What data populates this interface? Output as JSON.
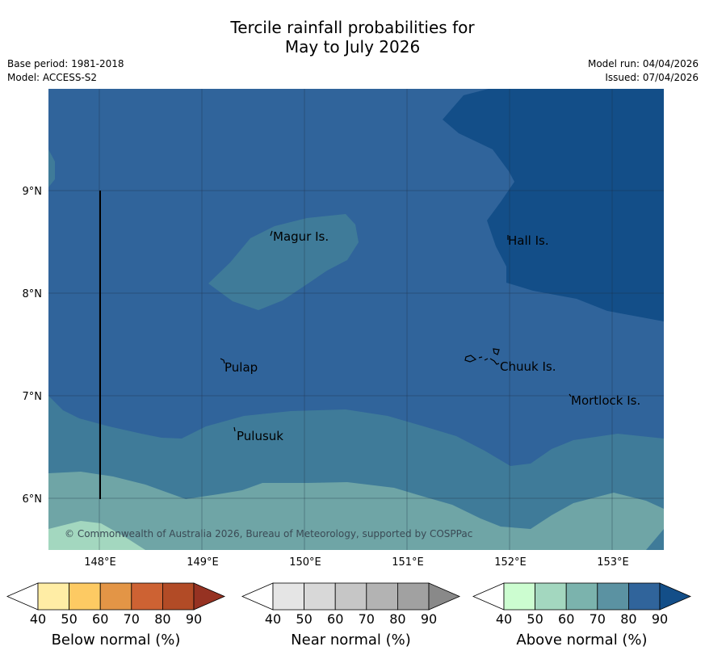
{
  "title": {
    "line1": "Tercile rainfall probabilities for",
    "line2": "May to July 2026"
  },
  "meta": {
    "base_period": "Base period: 1981-2018",
    "model": "Model: ACCESS-S2",
    "model_run": "Model run: 04/04/2026",
    "issued": "Issued: 07/04/2026"
  },
  "map": {
    "x_ticks": [
      "148°E",
      "149°E",
      "150°E",
      "151°E",
      "152°E",
      "153°E"
    ],
    "y_ticks": [
      "9°N",
      "8°N",
      "7°N",
      "6°N"
    ],
    "places": [
      "Magur Is.",
      "Hall Is.",
      "Pulap",
      "Chuuk Is.",
      "Mortlock Is.",
      "Pulusuk"
    ],
    "copyright": "© Commonwealth of Australia 2026, Bureau of Meteorology, supported by COSPPac",
    "band_colors": {
      "above_90": "#134e88",
      "above_80": "#30649b",
      "above_70": "#3f7b99",
      "above_60": "#6fa5a6",
      "above_50": "#a3d7bf"
    }
  },
  "legends": [
    {
      "label": "Below normal (%)",
      "ticks": [
        "40",
        "50",
        "60",
        "70",
        "80",
        "90"
      ],
      "colors": [
        "#ffffff",
        "#ffeda5",
        "#fdca63",
        "#e39546",
        "#cd6233",
        "#b24b26",
        "#963222"
      ]
    },
    {
      "label": "Near normal (%)",
      "ticks": [
        "40",
        "50",
        "60",
        "70",
        "80",
        "90"
      ],
      "colors": [
        "#ffffff",
        "#e5e5e5",
        "#d8d8d8",
        "#c6c6c6",
        "#b3b3b3",
        "#a1a1a1",
        "#898989"
      ]
    },
    {
      "label": "Above normal (%)",
      "ticks": [
        "40",
        "50",
        "60",
        "70",
        "80",
        "90"
      ],
      "colors": [
        "#ffffff",
        "#ccfdd0",
        "#a3d7bf",
        "#7bb3ad",
        "#5b92a2",
        "#30649b",
        "#134e88"
      ]
    }
  ]
}
